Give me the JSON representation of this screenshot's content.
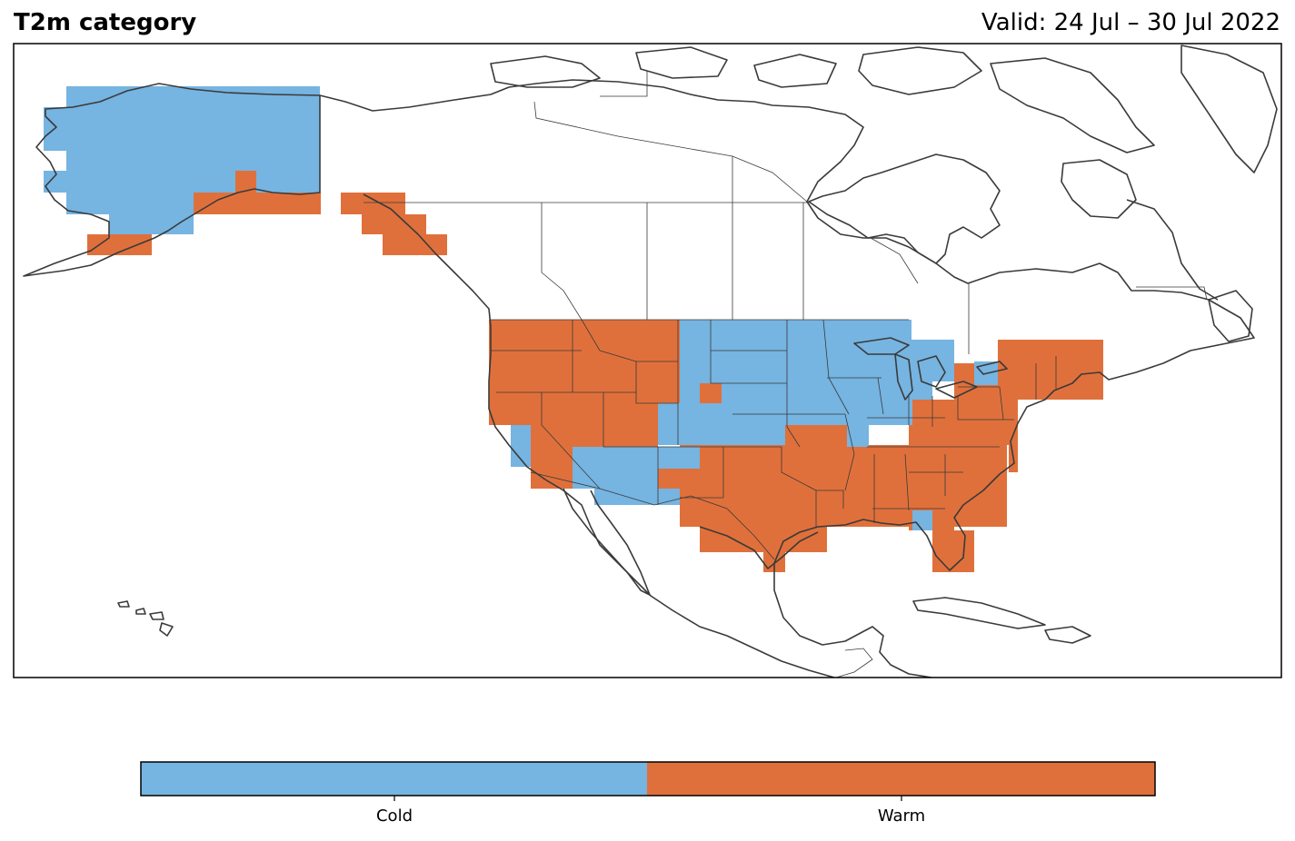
{
  "title": "T2m category",
  "valid": "Valid: 24 Jul – 30 Jul 2022",
  "categories": [
    {
      "name": "cold",
      "label": "Cold",
      "color": "#76b4e1"
    },
    {
      "name": "warm",
      "label": "Warm",
      "color": "#e0703b"
    }
  ],
  "colors": {
    "coastline": "#3a3a3a",
    "frame": "#000000"
  }
}
